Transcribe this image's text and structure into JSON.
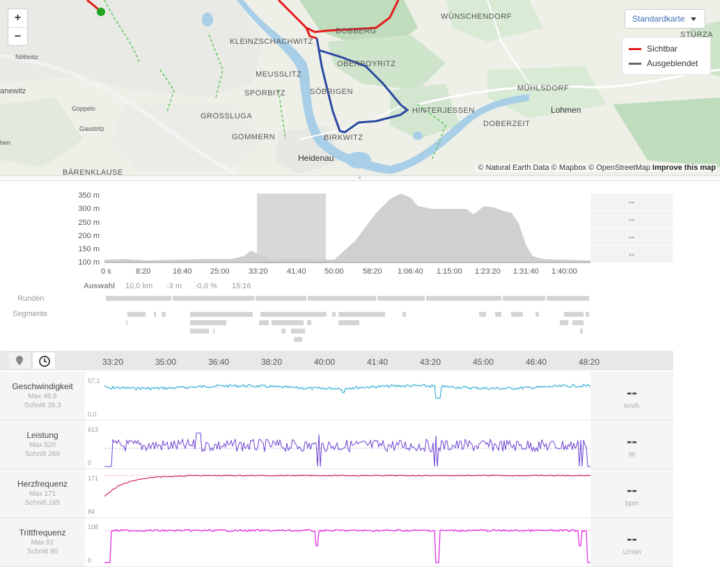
{
  "map": {
    "zoom_in": "+",
    "zoom_out": "−",
    "map_type": "Standardkarte",
    "legend": [
      {
        "label": "Sichtbar",
        "color": "#e31b1b"
      },
      {
        "label": "Ausgeblendet",
        "color": "#666666"
      }
    ],
    "attribution": "© Natural Earth Data © Mapbox © OpenStreetMap",
    "attribution_link": "Improve this map",
    "places": [
      "WÜNSCHENDORF",
      "STÜRZA",
      "KLEINZSCHACHWITZ",
      "DOBBERG",
      "OBERPOYRITZ",
      "MEUSSLITZ",
      "SPORBITZ",
      "SÖBRIGEN",
      "MÜHLSDORF",
      "HINTERJESSEN",
      "Lohmen",
      "GROSSLUGA",
      "DOBERZEIT",
      "GOMMERN",
      "BIRKWITZ",
      "Heidenau",
      "Nöthnitz",
      "Goppeln",
      "Gaustritz",
      "BÄRENKLAUSE",
      "anewitz",
      "hen"
    ]
  },
  "overview": {
    "y_ticks": [
      "350 m",
      "300 m",
      "250 m",
      "200 m",
      "150 m",
      "100 m"
    ],
    "x_ticks": [
      "0 s",
      "8:20",
      "16:40",
      "25:00",
      "33:20",
      "41:40",
      "50:00",
      "58:20",
      "1:06:40",
      "1:15:00",
      "1:23:20",
      "1:31:40",
      "1:40:00"
    ],
    "side_values": [
      "--",
      "--",
      "--",
      "--"
    ],
    "selection": {
      "label": "Auswahl",
      "distance": "10,0 km",
      "elevation": "-3 m",
      "grade": "-0,0 %",
      "duration": "15:16"
    },
    "rows": {
      "laps": "Runden",
      "segments": "Segmente"
    }
  },
  "detail": {
    "tabs": {
      "location": "map-pin-icon",
      "time": "clock-icon"
    },
    "x_ticks": [
      "33:20",
      "35:00",
      "36:40",
      "38:20",
      "40:00",
      "41:40",
      "43:20",
      "45:00",
      "46:40",
      "48:20"
    ],
    "metrics": [
      {
        "name": "Geschwindigkeit",
        "max": "Max 46,8",
        "avg": "Schnitt 39,3",
        "top": "57,1",
        "bottom": "0,0",
        "value": "--",
        "unit": "km/h",
        "color": "#3aaed8"
      },
      {
        "name": "Leistung",
        "max": "Max 520",
        "avg": "Schnitt 269",
        "top": "613",
        "bottom": "0",
        "value": "--",
        "unit": "W",
        "color": "#6a3fd0"
      },
      {
        "name": "Herzfrequenz",
        "max": "Max 171",
        "avg": "Schnitt 165",
        "top": "171",
        "bottom": "84",
        "value": "--",
        "unit": "bpm",
        "color": "#d0245e"
      },
      {
        "name": "Trittfrequenz",
        "max": "Max 91",
        "avg": "Schnitt 80",
        "top": "108",
        "bottom": "0",
        "value": "--",
        "unit": "U/min",
        "color": "#e020e0"
      }
    ]
  }
}
